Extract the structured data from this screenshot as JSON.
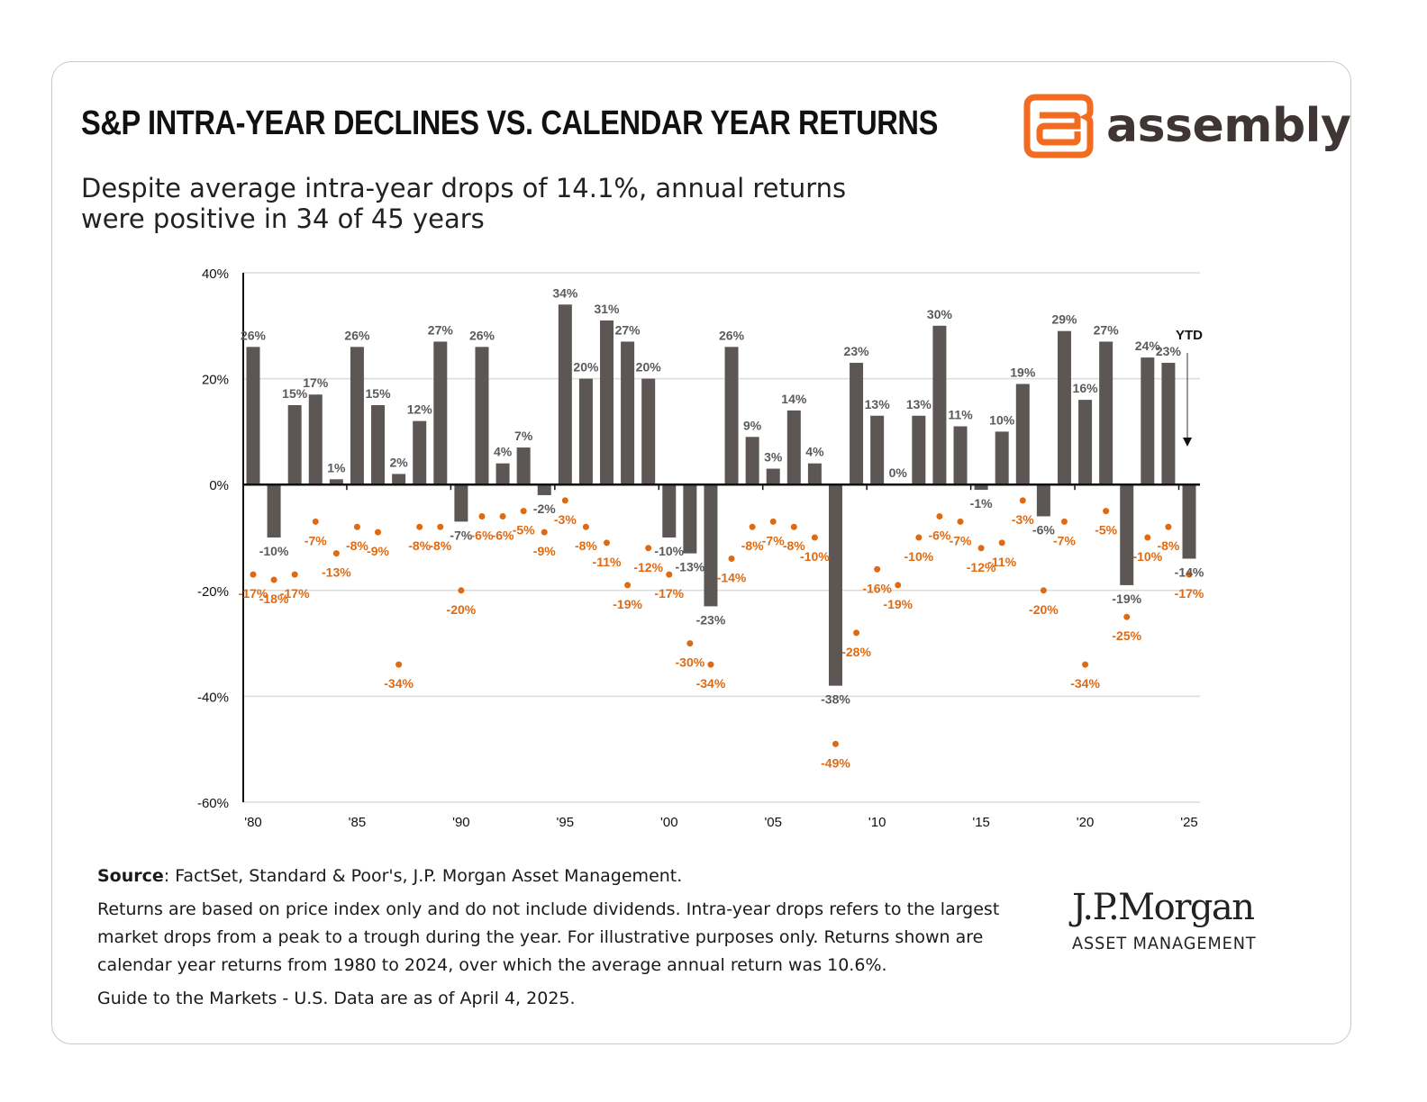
{
  "header": {
    "title": "S&P INTRA-YEAR DECLINES VS. CALENDAR YEAR RETURNS",
    "subtitle_line1": "Despite average intra-year drops of 14.1%, annual returns",
    "subtitle_line2": "were positive in 34 of 45 years"
  },
  "brand": {
    "name": "assembly",
    "logo_icon": "assembly-a-logo-icon",
    "accent": "#F26B21"
  },
  "footer": {
    "source_label": "Source",
    "source_text": ": FactSet, Standard & Poor's, J.P. Morgan Asset Management.",
    "note": "Returns are based on price index only and do not include dividends. Intra-year drops refers to the largest market drops from a peak to a trough during the year. For illustrative purposes only. Returns shown are calendar year returns from 1980 to 2024, over which the average annual return was 10.6%.",
    "guide": "Guide to the Markets - U.S. Data are as of April 4, 2025."
  },
  "partner": {
    "name": "J.P.Morgan",
    "sub": "ASSET MANAGEMENT"
  },
  "chart_data": {
    "type": "bar",
    "title": "S&P INTRA-YEAR DECLINES VS. CALENDAR YEAR RETURNS",
    "xlabel": "",
    "ylabel": "",
    "ylim": [
      -60,
      40
    ],
    "yticks": [
      40,
      20,
      0,
      -20,
      -40,
      -60
    ],
    "ytick_labels": [
      "40%",
      "20%",
      "0%",
      "-20%",
      "-40%",
      "-60%"
    ],
    "xticks": [
      1980,
      1985,
      1990,
      1995,
      2000,
      2005,
      2010,
      2015,
      2020,
      2025
    ],
    "xtick_labels": [
      "'80",
      "'85",
      "'90",
      "'95",
      "'00",
      "'05",
      "'10",
      "'15",
      "'20",
      "'25"
    ],
    "grid": true,
    "annotation": "YTD",
    "colors": {
      "bar": "#5C5754",
      "dot": "#E06A12",
      "bar_label": "#5A5A5A",
      "dot_label": "#E06A12"
    },
    "years": [
      1980,
      1981,
      1982,
      1983,
      1984,
      1985,
      1986,
      1987,
      1988,
      1989,
      1990,
      1991,
      1992,
      1993,
      1994,
      1995,
      1996,
      1997,
      1998,
      1999,
      2000,
      2001,
      2002,
      2003,
      2004,
      2005,
      2006,
      2007,
      2008,
      2009,
      2010,
      2011,
      2012,
      2013,
      2014,
      2015,
      2016,
      2017,
      2018,
      2019,
      2020,
      2021,
      2022,
      2023,
      2024,
      2025
    ],
    "series": [
      {
        "name": "Calendar year return",
        "type": "bar",
        "values": [
          26,
          -10,
          15,
          17,
          1,
          26,
          15,
          2,
          12,
          27,
          -7,
          26,
          4,
          7,
          -2,
          34,
          20,
          31,
          27,
          20,
          -10,
          -13,
          -23,
          26,
          9,
          3,
          14,
          4,
          -38,
          23,
          13,
          0,
          13,
          30,
          11,
          -1,
          10,
          19,
          -6,
          29,
          16,
          27,
          -19,
          24,
          23,
          -14
        ]
      },
      {
        "name": "Intra-year decline",
        "type": "scatter",
        "values": [
          -17,
          -18,
          -17,
          -7,
          -13,
          -8,
          -9,
          -34,
          -8,
          -8,
          -20,
          -6,
          -6,
          -5,
          -9,
          -3,
          -8,
          -11,
          -19,
          -12,
          -17,
          -30,
          -34,
          -14,
          -8,
          -7,
          -8,
          -10,
          -49,
          -28,
          -16,
          -19,
          -10,
          -6,
          -7,
          -12,
          -11,
          -3,
          -20,
          -7,
          -34,
          -5,
          -25,
          -10,
          -8,
          -17
        ]
      }
    ]
  }
}
